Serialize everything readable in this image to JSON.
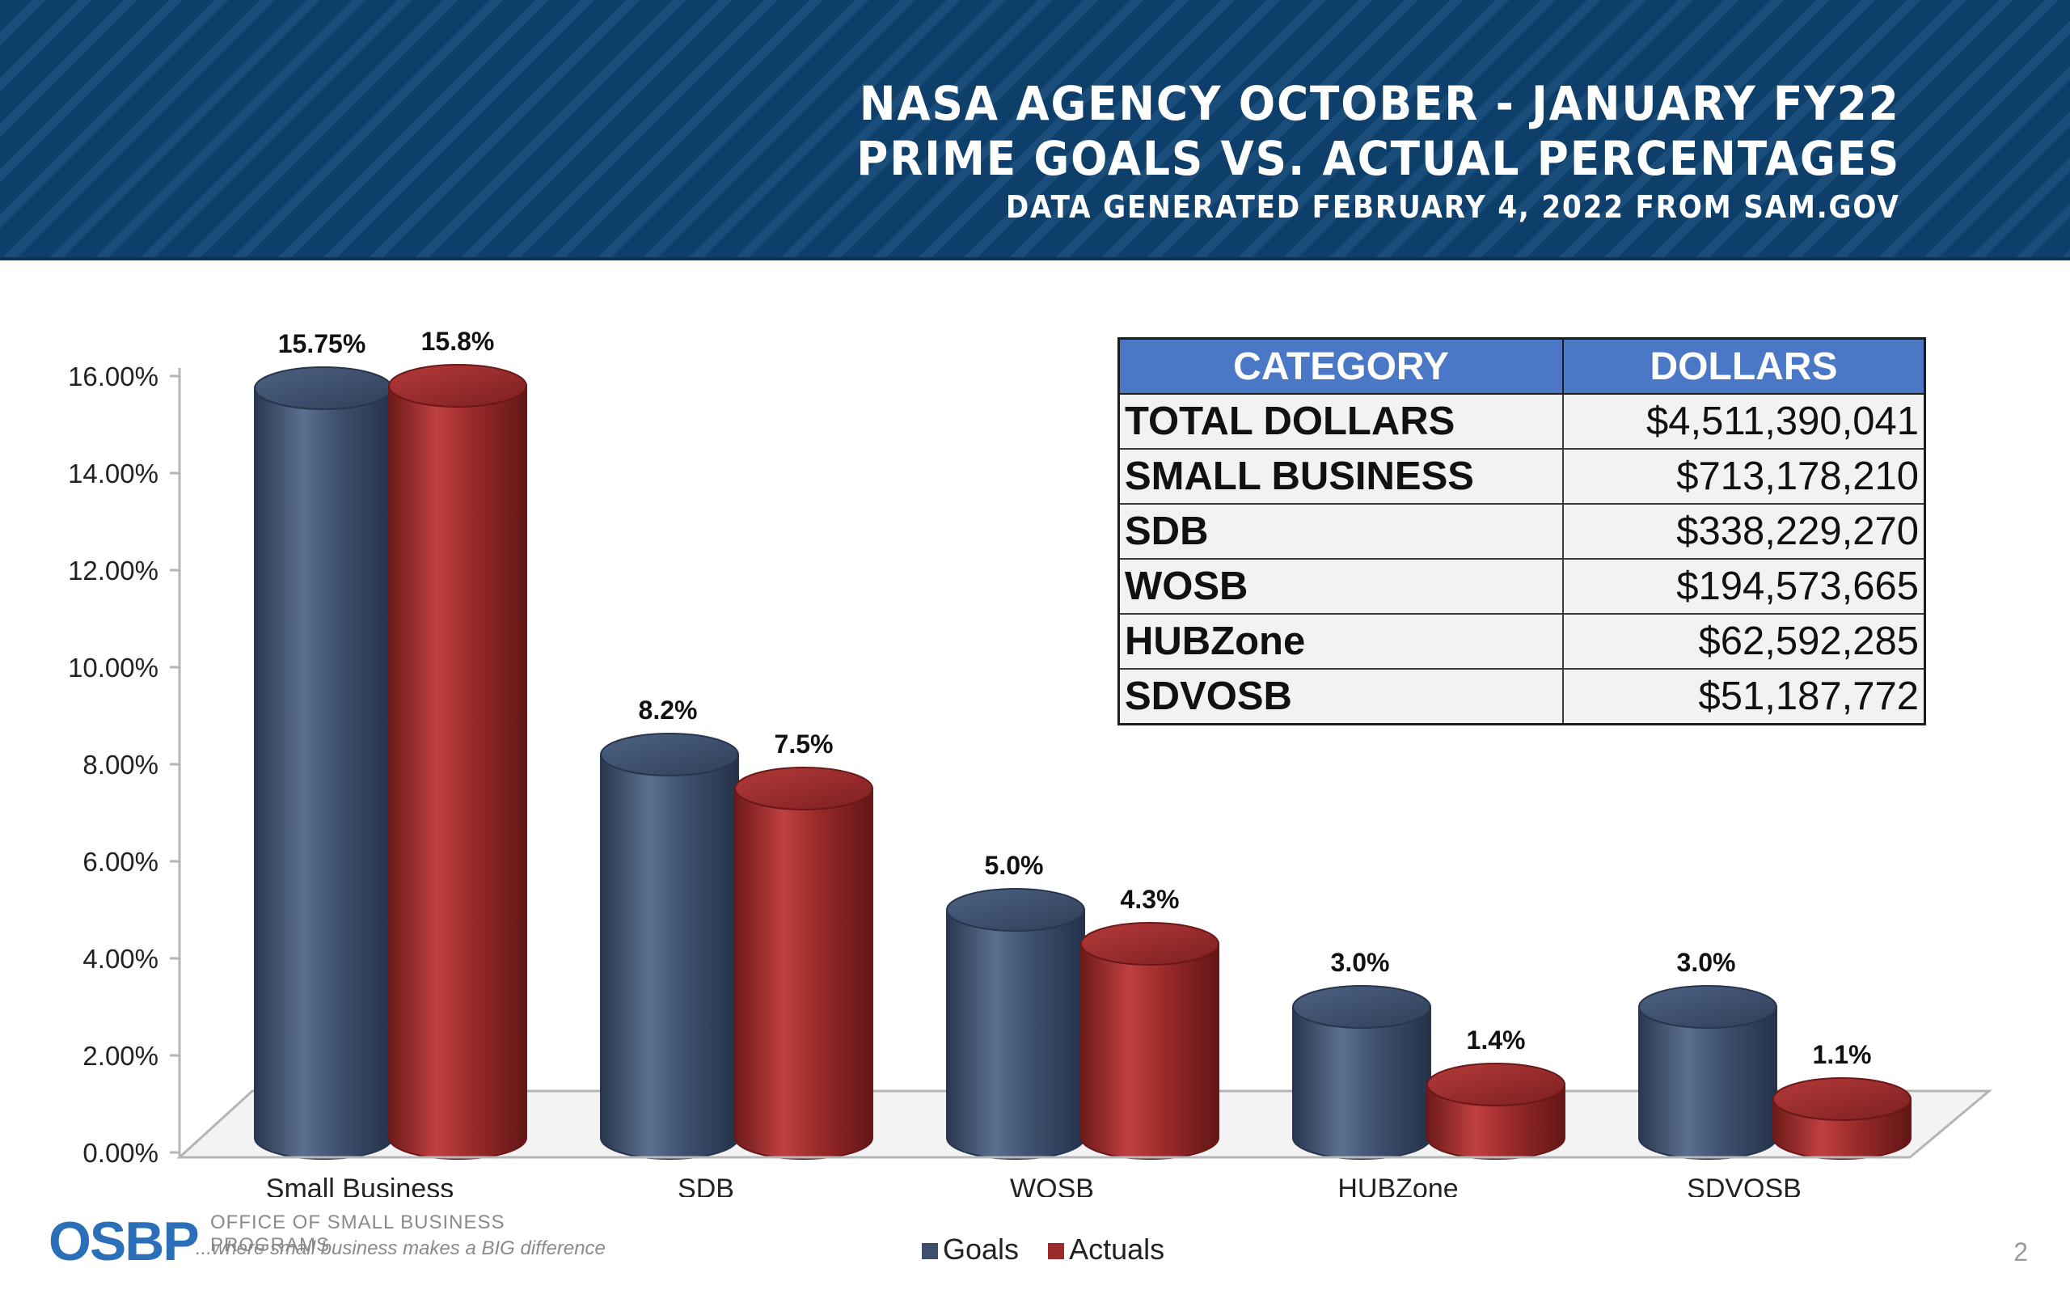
{
  "header": {
    "title_line1": "NASA AGENCY OCTOBER - JANUARY FY22",
    "title_line2": "PRIME GOALS VS. ACTUAL PERCENTAGES",
    "subtitle": "DATA GENERATED FEBRUARY 4, 2022 FROM SAM.GOV",
    "background_color": "#0e3f6b"
  },
  "chart_data": {
    "type": "bar",
    "style": "3d-cylinder",
    "categories": [
      "Small Business",
      "SDB",
      "WOSB",
      "HUBZone",
      "SDVOSB"
    ],
    "series": [
      {
        "name": "Goals",
        "color": "#3d4f6b",
        "values": [
          15.75,
          8.2,
          5.0,
          3.0,
          3.0
        ],
        "labels": [
          "15.75%",
          "8.2%",
          "5.0%",
          "3.0%",
          "3.0%"
        ]
      },
      {
        "name": "Actuals",
        "color": "#9b2a2a",
        "values": [
          15.8,
          7.5,
          4.3,
          1.4,
          1.1
        ],
        "labels": [
          "15.8%",
          "7.5%",
          "4.3%",
          "1.4%",
          "1.1%"
        ]
      }
    ],
    "ylim": [
      0,
      16
    ],
    "yticks": [
      "0.00%",
      "2.00%",
      "4.00%",
      "6.00%",
      "8.00%",
      "10.00%",
      "12.00%",
      "14.00%",
      "16.00%"
    ],
    "grid": false,
    "legend_position": "bottom"
  },
  "table": {
    "headers": [
      "CATEGORY",
      "DOLLARS"
    ],
    "rows": [
      [
        "TOTAL DOLLARS",
        "$4,511,390,041"
      ],
      [
        "SMALL BUSINESS",
        "$713,178,210"
      ],
      [
        "SDB",
        "$338,229,270"
      ],
      [
        "WOSB",
        "$194,573,665"
      ],
      [
        "HUBZone",
        "$62,592,285"
      ],
      [
        "SDVOSB",
        "$51,187,772"
      ]
    ],
    "header_color": "#4a78c6"
  },
  "footer": {
    "logo_mark": "OSBP",
    "logo_line1": "OFFICE OF SMALL BUSINESS PROGRAMS",
    "logo_line2": "...where small business makes a BIG difference",
    "page_number": "2"
  },
  "legend": {
    "goals_label": "Goals",
    "actuals_label": "Actuals"
  }
}
